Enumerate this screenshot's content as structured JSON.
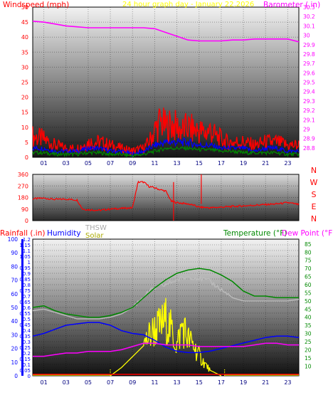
{
  "colors": {
    "windspeed": "#ff0000",
    "title": "#ffff00",
    "barometer": "#ff00ff",
    "direction": "#ff0000",
    "rainfall": "#ff0000",
    "humidity": "#0000ff",
    "thsw": "#bbbbbb",
    "solar": "#aaaa00",
    "temperature": "#008800",
    "dewpoint": "#ff00ff",
    "compass": "#ff0000",
    "rain_axis": "#0000ff",
    "temp_axis": "#008800"
  },
  "chart_data": [
    {
      "type": "line",
      "title": "24 hour graph day - January 22,2026",
      "left_label": "Windspeed (mph)",
      "right_label": "Barometer (.in)",
      "x_ticks": [
        "01",
        "03",
        "05",
        "07",
        "09",
        "11",
        "13",
        "15",
        "17",
        "19",
        "21",
        "23"
      ],
      "x_range": [
        0,
        24
      ],
      "y_left_range": [
        0,
        50
      ],
      "y_left_ticks": [
        "0",
        "5",
        "10",
        "15",
        "20",
        "25",
        "30",
        "35",
        "40",
        "45",
        "50"
      ],
      "y_right_range": [
        28.7,
        30.3
      ],
      "y_right_ticks": [
        "28.8",
        "28.9",
        "29",
        "29.1",
        "29.2",
        "29.3",
        "29.4",
        "29.5",
        "29.6",
        "29.7",
        "29.8",
        "29.9",
        "30",
        "30.1",
        "30.2",
        "30.3"
      ],
      "series": [
        {
          "name": "Windspeed (mph)",
          "axis": "left",
          "x": [
            0,
            1,
            2,
            3,
            4,
            5,
            6,
            7,
            8,
            9,
            10,
            10.5,
            11,
            11.5,
            12,
            12.5,
            13,
            13.5,
            14,
            14.5,
            15,
            15.5,
            16,
            16.5,
            17,
            17.5,
            18,
            19,
            20,
            21,
            22,
            23,
            24
          ],
          "y": [
            7,
            6,
            4,
            3,
            3,
            5,
            5,
            4,
            3,
            2,
            3,
            5,
            9,
            12,
            10,
            11,
            10,
            9,
            10,
            9,
            9,
            8,
            9,
            7,
            6,
            5,
            5,
            5,
            4,
            5,
            5,
            4,
            4
          ]
        },
        {
          "name": "Wind gust",
          "axis": "left",
          "x": [
            0,
            1,
            2,
            3,
            4,
            5,
            6,
            7,
            8,
            9,
            10,
            11,
            12,
            13,
            14,
            15,
            16,
            17,
            18,
            19,
            20,
            21,
            22,
            23,
            24
          ],
          "y": [
            3,
            3,
            2,
            2,
            2,
            3,
            3,
            2,
            2,
            1,
            2,
            4,
            5,
            5,
            5,
            4,
            4,
            3,
            3,
            3,
            2,
            3,
            3,
            2,
            2
          ]
        },
        {
          "name": "Wind low",
          "axis": "left",
          "x": [
            0,
            1,
            2,
            3,
            4,
            5,
            6,
            7,
            8,
            9,
            10,
            11,
            12,
            13,
            14,
            15,
            16,
            17,
            18,
            19,
            20,
            21,
            22,
            23,
            24
          ],
          "y": [
            1.5,
            1.5,
            1,
            1,
            1,
            1.5,
            1.5,
            1,
            1,
            0.5,
            1,
            2,
            3,
            3,
            3,
            2.5,
            2.5,
            2,
            2,
            1.5,
            1.5,
            1.5,
            1.5,
            1,
            1
          ]
        },
        {
          "name": "Barometer (.in)",
          "axis": "right",
          "x": [
            0,
            1,
            2,
            3,
            4,
            5,
            6,
            7,
            8,
            9,
            10,
            11,
            12,
            13,
            14,
            15,
            16,
            17,
            18,
            19,
            20,
            21,
            22,
            23,
            24
          ],
          "y": [
            30.15,
            30.14,
            30.12,
            30.1,
            30.09,
            30.08,
            30.08,
            30.08,
            30.08,
            30.08,
            30.08,
            30.07,
            30.03,
            29.99,
            29.95,
            29.94,
            29.94,
            29.94,
            29.95,
            29.95,
            29.96,
            29.96,
            29.96,
            29.96,
            29.93
          ]
        }
      ]
    },
    {
      "type": "line",
      "x_range": [
        0,
        24
      ],
      "y_range": [
        0,
        360
      ],
      "y_ticks": [
        "0",
        "90",
        "180",
        "270",
        "360"
      ],
      "compass_labels": [
        "N",
        "W",
        "S",
        "E",
        "N"
      ],
      "series": [
        {
          "name": "Wind direction",
          "x": [
            0,
            1,
            2,
            3,
            4,
            4.5,
            5,
            6,
            7,
            8,
            9,
            9.5,
            10,
            10.5,
            11,
            11.5,
            12,
            12.5,
            13,
            13.5,
            14,
            14.5,
            15,
            16,
            17,
            18,
            19,
            20,
            21,
            22,
            23,
            24
          ],
          "y": [
            170,
            175,
            165,
            168,
            160,
            90,
            85,
            80,
            90,
            95,
            100,
            300,
            300,
            265,
            255,
            240,
            230,
            150,
            140,
            135,
            130,
            120,
            105,
            100,
            105,
            110,
            115,
            120,
            125,
            130,
            140,
            125
          ]
        }
      ]
    },
    {
      "type": "line",
      "left_label": "Rainfall (.in)",
      "humidity_label": "Humidity",
      "thsw_label": "THSW",
      "solar_label": "Solar",
      "right_label": "Temperature (°F)",
      "dewpoint_label": "Dew Point (°F)",
      "x_ticks": [
        "01",
        "03",
        "05",
        "07",
        "09",
        "11",
        "13",
        "15",
        "17",
        "19",
        "21",
        "23"
      ],
      "x_range": [
        0,
        24
      ],
      "rain_axis_range": [
        0,
        100
      ],
      "rain_axis_ticks": [
        "0",
        "10",
        "20",
        "30",
        "40",
        "50",
        "60",
        "70",
        "80",
        "90",
        "100"
      ],
      "y_left_range": [
        0,
        1.2
      ],
      "y_left_ticks": [
        "0",
        "0.05",
        "0.1",
        "0.15",
        "0.2",
        "0.25",
        "0.3",
        "0.35",
        "0.4",
        "0.45",
        "0.5",
        "0.55",
        "0.6",
        "0.65",
        "0.7",
        "0.75",
        "0.8",
        "0.85",
        "0.9",
        "0.95",
        "1",
        "1.05",
        "1.1",
        "1.15",
        "1.2"
      ],
      "y_right_range": [
        4,
        88
      ],
      "y_right_ticks": [
        "10",
        "15",
        "20",
        "25",
        "30",
        "35",
        "40",
        "45",
        "50",
        "55",
        "60",
        "65",
        "70",
        "75",
        "80",
        "85"
      ],
      "series": [
        {
          "name": "Temperature (°F)",
          "axis": "right",
          "x": [
            0,
            1,
            2,
            3,
            4,
            5,
            6,
            7,
            8,
            9,
            10,
            11,
            12,
            13,
            14,
            15,
            16,
            17,
            18,
            19,
            20,
            21,
            22,
            23,
            24
          ],
          "y": [
            46,
            47,
            44,
            42,
            41,
            40,
            40,
            41,
            43,
            46,
            52,
            58,
            63,
            67,
            69,
            70,
            69,
            66,
            62,
            56,
            53,
            53,
            52,
            52,
            52
          ]
        },
        {
          "name": "THSW",
          "axis": "right",
          "x": [
            0,
            1,
            2,
            3,
            4,
            5,
            6,
            7,
            8,
            9,
            10,
            11,
            12,
            13,
            14,
            15,
            16,
            17,
            18,
            19,
            20,
            21,
            22,
            23,
            24
          ],
          "y": [
            44,
            45,
            43,
            41,
            39,
            39,
            39,
            40,
            42,
            46,
            53,
            58,
            60,
            63,
            65,
            64,
            62,
            57,
            52,
            50,
            50,
            50,
            50,
            50,
            51
          ]
        },
        {
          "name": "Humidity",
          "axis": "rain_pct",
          "x": [
            0,
            1,
            2,
            3,
            4,
            5,
            6,
            7,
            8,
            9,
            10,
            11,
            12,
            13,
            14,
            15,
            16,
            17,
            18,
            19,
            20,
            21,
            22,
            23,
            24
          ],
          "y": [
            29,
            31,
            34,
            37,
            38,
            39,
            39,
            37,
            33,
            31,
            30,
            26,
            21,
            18,
            17,
            17,
            18,
            20,
            22,
            24,
            26,
            28,
            29,
            29,
            28
          ]
        },
        {
          "name": "Dew Point (°F)",
          "axis": "right",
          "x": [
            0,
            1,
            2,
            3,
            4,
            5,
            6,
            7,
            8,
            9,
            10,
            11,
            12,
            13,
            14,
            15,
            16,
            17,
            18,
            19,
            20,
            21,
            22,
            23,
            24
          ],
          "y": [
            16,
            16,
            17,
            18,
            18,
            19,
            19,
            19,
            20,
            22,
            24,
            24,
            23,
            23,
            23,
            22,
            22,
            22,
            22,
            22,
            23,
            24,
            24,
            23,
            23
          ]
        },
        {
          "name": "Rainfall (.in)",
          "axis": "left",
          "x": [
            0,
            24
          ],
          "y": [
            0,
            0
          ]
        },
        {
          "name": "Solar",
          "axis": "rain_pct",
          "x": [
            7,
            8,
            9,
            10,
            10.5,
            11,
            11.5,
            12,
            12.5,
            13,
            13.5,
            14,
            14.5,
            15,
            15.5,
            16,
            17
          ],
          "y": [
            0,
            6,
            14,
            22,
            29,
            34,
            36,
            41,
            33,
            22,
            37,
            27,
            22,
            15,
            9,
            4,
            0
          ]
        }
      ]
    }
  ]
}
